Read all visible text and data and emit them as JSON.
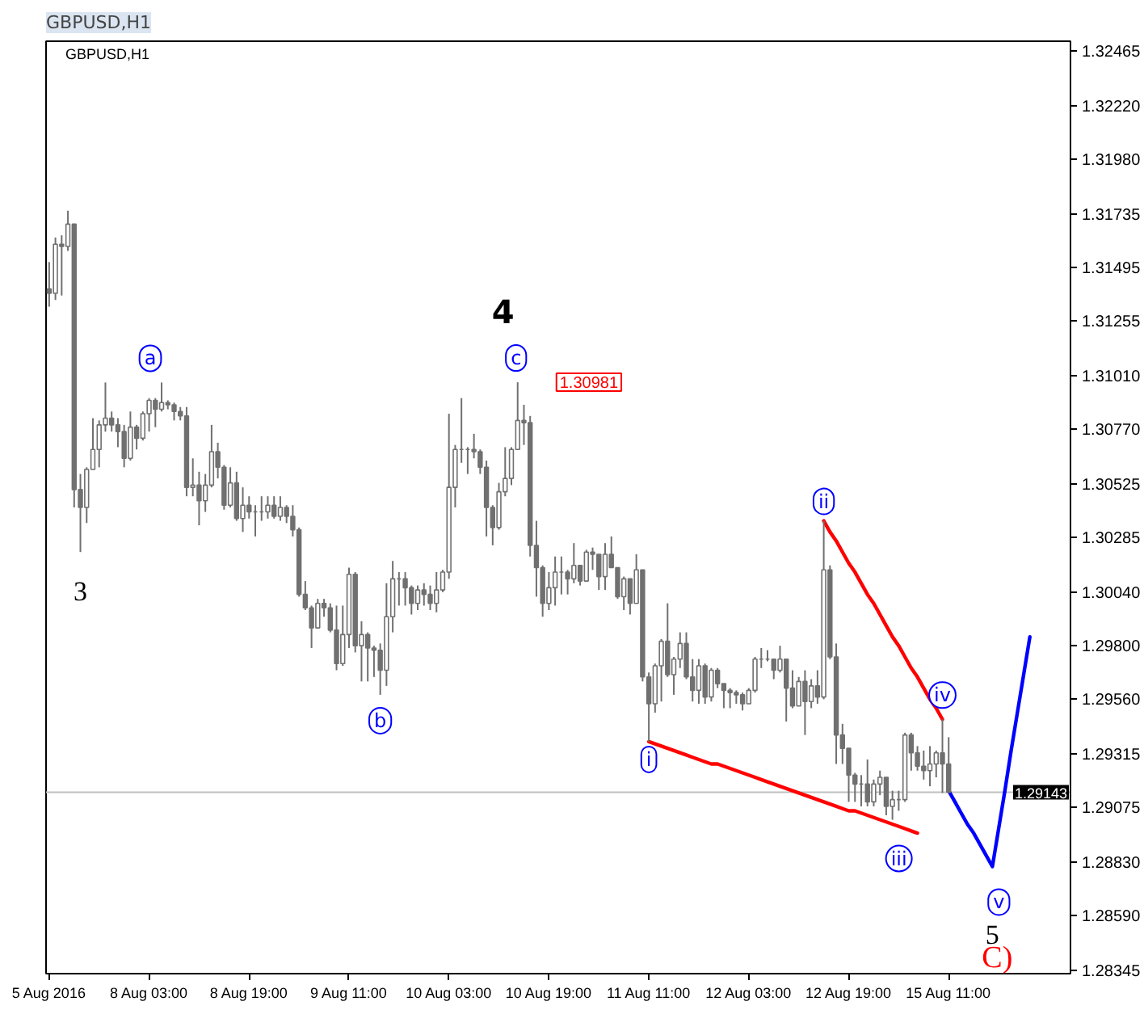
{
  "chart_data": {
    "type": "candlestick",
    "title": "GBPUSD,H1",
    "subtitle": "GBPUSD,H1",
    "color": "#707070",
    "categories": [
      "5 Aug 2016",
      null,
      null,
      null,
      null,
      null,
      null,
      null,
      null,
      null,
      null,
      null,
      null,
      null,
      null,
      null,
      "8 Aug 03:00",
      null,
      null,
      null,
      null,
      null,
      null,
      null,
      null,
      null,
      null,
      null,
      null,
      null,
      null,
      null,
      "8 Aug 19:00",
      null,
      null,
      null,
      null,
      null,
      null,
      null,
      null,
      null,
      null,
      null,
      null,
      null,
      null,
      null,
      "9 Aug 11:00",
      null,
      null,
      null,
      null,
      null,
      null,
      null,
      null,
      null,
      null,
      null,
      null,
      null,
      null,
      null,
      "10 Aug 03:00",
      null,
      null,
      null,
      null,
      null,
      null,
      null,
      null,
      null,
      null,
      null,
      null,
      null,
      null,
      null,
      "10 Aug 19:00",
      null,
      null,
      null,
      null,
      null,
      null,
      null,
      null,
      null,
      null,
      null,
      null,
      null,
      null,
      null,
      "11 Aug 11:00",
      null,
      null,
      null,
      null,
      null,
      null,
      null,
      null,
      null,
      null,
      null,
      null,
      null,
      null,
      null,
      "12 Aug 03:00",
      null,
      null,
      null,
      null,
      null,
      null,
      null,
      null,
      null,
      null,
      null,
      null,
      null,
      null,
      null,
      "12 Aug 19:00",
      null,
      null,
      null,
      null,
      null,
      null,
      null,
      null,
      null,
      null,
      null,
      null,
      null,
      null,
      null,
      "15 Aug 11:00",
      null,
      null,
      null,
      null,
      null,
      null,
      null,
      null,
      null,
      null,
      null,
      null,
      null,
      null,
      null,
      null,
      null,
      null,
      null
    ],
    "ohlc": [
      [
        1.314,
        1.3152,
        1.3132,
        1.3138
      ],
      [
        1.3138,
        1.3163,
        1.3135,
        1.316
      ],
      [
        1.316,
        1.3164,
        1.3137,
        1.3159
      ],
      [
        1.3159,
        1.3175,
        1.3157,
        1.3169
      ],
      [
        1.3169,
        1.3169,
        1.3042,
        1.305
      ],
      [
        1.305,
        1.3057,
        1.3022,
        1.3042
      ],
      [
        1.3042,
        1.306,
        1.3035,
        1.3059
      ],
      [
        1.3059,
        1.3082,
        1.3059,
        1.3068
      ],
      [
        1.3068,
        1.3081,
        1.306,
        1.3079
      ],
      [
        1.3079,
        1.3098,
        1.3076,
        1.3082
      ],
      [
        1.3082,
        1.3085,
        1.3076,
        1.3079
      ],
      [
        1.3079,
        1.3082,
        1.3069,
        1.3076
      ],
      [
        1.3076,
        1.3079,
        1.306,
        1.3064
      ],
      [
        1.3064,
        1.3085,
        1.3063,
        1.3078
      ],
      [
        1.3078,
        1.3079,
        1.3068,
        1.3073
      ],
      [
        1.3073,
        1.3085,
        1.3072,
        1.3084
      ],
      [
        1.3084,
        1.3091,
        1.3076,
        1.309
      ],
      [
        1.309,
        1.3091,
        1.3078,
        1.3086
      ],
      [
        1.3086,
        1.3098,
        1.3085,
        1.3089
      ],
      [
        1.3089,
        1.309,
        1.3086,
        1.3088
      ],
      [
        1.3088,
        1.3089,
        1.3081,
        1.3085
      ],
      [
        1.3085,
        1.3087,
        1.3081,
        1.3083
      ],
      [
        1.3083,
        1.3087,
        1.3047,
        1.3051
      ],
      [
        1.3051,
        1.3064,
        1.3047,
        1.3052
      ],
      [
        1.3052,
        1.3058,
        1.3034,
        1.3045
      ],
      [
        1.3045,
        1.3057,
        1.304,
        1.3052
      ],
      [
        1.3052,
        1.3079,
        1.3051,
        1.3067
      ],
      [
        1.3067,
        1.3071,
        1.3055,
        1.306
      ],
      [
        1.306,
        1.3061,
        1.3041,
        1.3043
      ],
      [
        1.3043,
        1.306,
        1.3042,
        1.3053
      ],
      [
        1.3053,
        1.3058,
        1.3036,
        1.3037
      ],
      [
        1.3037,
        1.3051,
        1.3031,
        1.3043
      ],
      [
        1.3043,
        1.3047,
        1.3037,
        1.304
      ],
      [
        1.304,
        1.3043,
        1.3029,
        1.304
      ],
      [
        1.304,
        1.3047,
        1.3036,
        1.304
      ],
      [
        1.304,
        1.3047,
        1.3037,
        1.3043
      ],
      [
        1.3043,
        1.3047,
        1.3037,
        1.3038
      ],
      [
        1.3038,
        1.3047,
        1.3036,
        1.3042
      ],
      [
        1.3042,
        1.3043,
        1.3035,
        1.3038
      ],
      [
        1.3038,
        1.3043,
        1.3029,
        1.3032
      ],
      [
        1.3032,
        1.3033,
        1.3002,
        1.3003
      ],
      [
        1.3003,
        1.3009,
        1.2996,
        1.2997
      ],
      [
        1.2997,
        1.2998,
        1.2979,
        1.2988
      ],
      [
        1.2988,
        1.3001,
        1.2988,
        1.2999
      ],
      [
        1.2999,
        1.3001,
        1.2993,
        1.2997
      ],
      [
        1.2997,
        1.2999,
        1.2986,
        1.2987
      ],
      [
        1.2987,
        1.2998,
        1.2969,
        1.2972
      ],
      [
        1.2972,
        1.2998,
        1.2971,
        1.2985
      ],
      [
        1.2985,
        1.3015,
        1.2979,
        1.3012
      ],
      [
        1.3012,
        1.3013,
        1.2977,
        1.298
      ],
      [
        1.298,
        1.2991,
        1.2964,
        1.2985
      ],
      [
        1.2985,
        1.2986,
        1.2964,
        1.2979
      ],
      [
        1.2979,
        1.298,
        1.2966,
        1.2978
      ],
      [
        1.2978,
        1.2981,
        1.2958,
        1.2969
      ],
      [
        1.2969,
        1.3008,
        1.2962,
        1.2993
      ],
      [
        1.2993,
        1.3018,
        1.2986,
        1.301
      ],
      [
        1.301,
        1.3013,
        1.2998,
        1.301
      ],
      [
        1.301,
        1.3013,
        1.2998,
        1.3006
      ],
      [
        1.3006,
        1.3007,
        1.2994,
        1.2999
      ],
      [
        1.2999,
        1.3007,
        1.2996,
        1.3005
      ],
      [
        1.3005,
        1.3008,
        1.2998,
        1.3003
      ],
      [
        1.3003,
        1.3007,
        1.2996,
        1.2999
      ],
      [
        1.2999,
        1.3013,
        1.2995,
        1.3005
      ],
      [
        1.3005,
        1.3014,
        1.3004,
        1.3013
      ],
      [
        1.3013,
        1.3084,
        1.301,
        1.3051
      ],
      [
        1.3051,
        1.307,
        1.3042,
        1.3068
      ],
      [
        1.3068,
        1.3091,
        1.3062,
        1.3068
      ],
      [
        1.3068,
        1.3069,
        1.3057,
        1.3068
      ],
      [
        1.3068,
        1.3075,
        1.3064,
        1.3067
      ],
      [
        1.3067,
        1.3068,
        1.3057,
        1.306
      ],
      [
        1.306,
        1.3063,
        1.3029,
        1.3042
      ],
      [
        1.3042,
        1.3043,
        1.3025,
        1.3033
      ],
      [
        1.3033,
        1.3053,
        1.3032,
        1.3049
      ],
      [
        1.3049,
        1.3069,
        1.3047,
        1.3055
      ],
      [
        1.3055,
        1.3069,
        1.3052,
        1.3068
      ],
      [
        1.3068,
        1.30981,
        1.3068,
        1.3081
      ],
      [
        1.3081,
        1.3088,
        1.307,
        1.308
      ],
      [
        1.308,
        1.3083,
        1.302,
        1.3025
      ],
      [
        1.3025,
        1.3036,
        1.3002,
        1.3015
      ],
      [
        1.3015,
        1.3016,
        1.2993,
        1.2999
      ],
      [
        1.2999,
        1.3013,
        1.2996,
        1.3006
      ],
      [
        1.3006,
        1.302,
        1.2998,
        1.3013
      ],
      [
        1.3013,
        1.302,
        1.3003,
        1.3013
      ],
      [
        1.3013,
        1.3014,
        1.3003,
        1.301
      ],
      [
        1.301,
        1.3026,
        1.3008,
        1.3016
      ],
      [
        1.3016,
        1.3016,
        1.3007,
        1.3009
      ],
      [
        1.3009,
        1.3023,
        1.3009,
        1.3022
      ],
      [
        1.3022,
        1.3024,
        1.3014,
        1.3021
      ],
      [
        1.3021,
        1.3021,
        1.3005,
        1.3011
      ],
      [
        1.3011,
        1.3026,
        1.3005,
        1.3021
      ],
      [
        1.3021,
        1.3029,
        1.3015,
        1.3015
      ],
      [
        1.3015,
        1.3015,
        1.3001,
        1.3002
      ],
      [
        1.3002,
        1.3011,
        1.2996,
        1.301
      ],
      [
        1.301,
        1.301,
        1.2994,
        1.2999
      ],
      [
        1.2999,
        1.3021,
        1.2999,
        1.3014
      ],
      [
        1.3014,
        1.3014,
        1.2964,
        1.2966
      ],
      [
        1.2966,
        1.2968,
        1.2937,
        1.2954
      ],
      [
        1.2954,
        1.2972,
        1.295,
        1.2971
      ],
      [
        1.2971,
        1.2983,
        1.2955,
        1.2982
      ],
      [
        1.2982,
        1.2999,
        1.2966,
        1.2967
      ],
      [
        1.2967,
        1.2975,
        1.2958,
        1.2974
      ],
      [
        1.2974,
        1.2986,
        1.297,
        1.2981
      ],
      [
        1.2981,
        1.2986,
        1.2965,
        1.2966
      ],
      [
        1.2966,
        1.2974,
        1.2955,
        1.296
      ],
      [
        1.296,
        1.2974,
        1.2954,
        1.2971
      ],
      [
        1.2971,
        1.2972,
        1.2954,
        1.2957
      ],
      [
        1.2957,
        1.297,
        1.2955,
        1.2969
      ],
      [
        1.2969,
        1.297,
        1.2961,
        1.2963
      ],
      [
        1.2963,
        1.2963,
        1.2952,
        1.296
      ],
      [
        1.296,
        1.2961,
        1.2952,
        1.2959
      ],
      [
        1.2959,
        1.296,
        1.2954,
        1.2958
      ],
      [
        1.2958,
        1.2959,
        1.2951,
        1.2954
      ],
      [
        1.2954,
        1.2961,
        1.2954,
        1.296
      ],
      [
        1.296,
        1.2975,
        1.2959,
        1.2974
      ],
      [
        1.2974,
        1.2979,
        1.297,
        1.2974
      ],
      [
        1.2974,
        1.2978,
        1.2973,
        1.2974
      ],
      [
        1.2974,
        1.2974,
        1.2965,
        1.2969
      ],
      [
        1.2969,
        1.298,
        1.2968,
        1.2974
      ],
      [
        1.2974,
        1.2974,
        1.2946,
        1.2961
      ],
      [
        1.2961,
        1.2969,
        1.2952,
        1.2953
      ],
      [
        1.2953,
        1.2966,
        1.2953,
        1.2964
      ],
      [
        1.2964,
        1.2969,
        1.294,
        1.2955
      ],
      [
        1.2955,
        1.2965,
        1.2952,
        1.2962
      ],
      [
        1.2962,
        1.2969,
        1.2954,
        1.2957
      ],
      [
        1.2957,
        1.3036,
        1.2956,
        1.3014
      ],
      [
        1.3014,
        1.3016,
        1.2974,
        1.2975
      ],
      [
        1.2975,
        1.2981,
        1.2927,
        1.294
      ],
      [
        1.294,
        1.2945,
        1.2927,
        1.2934
      ],
      [
        1.2934,
        1.2934,
        1.291,
        1.2922
      ],
      [
        1.2922,
        1.2923,
        1.291,
        1.2918
      ],
      [
        1.2918,
        1.2922,
        1.2908,
        1.2918
      ],
      [
        1.2918,
        1.2929,
        1.2908,
        1.291
      ],
      [
        1.291,
        1.292,
        1.2908,
        1.2918
      ],
      [
        1.2918,
        1.2924,
        1.2913,
        1.2921
      ],
      [
        1.2921,
        1.2921,
        1.2904,
        1.2908
      ],
      [
        1.2908,
        1.2915,
        1.2902,
        1.2911
      ],
      [
        1.2911,
        1.2915,
        1.2906,
        1.2911
      ],
      [
        1.2911,
        1.2941,
        1.291,
        1.294
      ],
      [
        1.294,
        1.2941,
        1.2924,
        1.2932
      ],
      [
        1.2932,
        1.2935,
        1.2924,
        1.2926
      ],
      [
        1.2926,
        1.2933,
        1.292,
        1.2924
      ],
      [
        1.2924,
        1.2935,
        1.2917,
        1.2927
      ],
      [
        1.2927,
        1.2933,
        1.2921,
        1.2932
      ],
      [
        1.2932,
        1.2947,
        1.2914,
        1.2927
      ],
      [
        1.2927,
        1.2939,
        1.2914,
        1.29143
      ],
      null,
      null,
      null,
      null,
      null,
      null,
      null,
      null,
      null,
      null,
      null,
      null,
      null,
      null,
      null,
      null,
      null,
      null,
      null
    ],
    "series": [
      {
        "type": "line",
        "color": "#ff0000",
        "values": [
          null,
          null,
          null,
          null,
          null,
          null,
          null,
          null,
          null,
          null,
          null,
          null,
          null,
          null,
          null,
          null,
          null,
          null,
          null,
          null,
          null,
          null,
          null,
          null,
          null,
          null,
          null,
          null,
          null,
          null,
          null,
          null,
          null,
          null,
          null,
          null,
          null,
          null,
          null,
          null,
          null,
          null,
          null,
          null,
          null,
          null,
          null,
          null,
          null,
          null,
          null,
          null,
          null,
          null,
          null,
          null,
          null,
          null,
          null,
          null,
          null,
          null,
          null,
          null,
          null,
          null,
          null,
          null,
          null,
          null,
          null,
          null,
          null,
          null,
          null,
          null,
          null,
          null,
          null,
          null,
          null,
          null,
          null,
          null,
          null,
          null,
          null,
          null,
          null,
          null,
          null,
          null,
          null,
          null,
          null,
          null,
          1.2937,
          1.2936,
          1.2935,
          1.2934,
          1.2933,
          1.2932,
          1.2931,
          1.293,
          1.2929,
          1.2928,
          1.2927,
          1.2927,
          1.2926,
          1.2925,
          1.2924,
          1.2923,
          1.2922,
          1.2921,
          1.292,
          1.2919,
          1.2918,
          1.2917,
          1.2916,
          1.2915,
          1.2914,
          1.2913,
          1.2912,
          1.2911,
          1.291,
          1.2909,
          1.2908,
          1.2907,
          1.2906,
          1.2906,
          1.2905,
          1.2904,
          1.2903,
          1.2902,
          1.2901,
          1.29,
          1.2899,
          1.2898,
          1.2897,
          1.2896,
          null,
          null,
          null,
          null,
          null,
          null,
          null,
          null,
          null,
          null,
          null,
          null,
          null,
          null,
          null,
          null,
          null,
          null,
          null,
          null,
          null,
          null,
          null,
          null
        ]
      },
      {
        "type": "line",
        "color": "#ff0000",
        "values": [
          null,
          null,
          null,
          null,
          null,
          null,
          null,
          null,
          null,
          null,
          null,
          null,
          null,
          null,
          null,
          null,
          null,
          null,
          null,
          null,
          null,
          null,
          null,
          null,
          null,
          null,
          null,
          null,
          null,
          null,
          null,
          null,
          null,
          null,
          null,
          null,
          null,
          null,
          null,
          null,
          null,
          null,
          null,
          null,
          null,
          null,
          null,
          null,
          null,
          null,
          null,
          null,
          null,
          null,
          null,
          null,
          null,
          null,
          null,
          null,
          null,
          null,
          null,
          null,
          null,
          null,
          null,
          null,
          null,
          null,
          null,
          null,
          null,
          null,
          null,
          null,
          null,
          null,
          null,
          null,
          null,
          null,
          null,
          null,
          null,
          null,
          null,
          null,
          null,
          null,
          null,
          null,
          null,
          null,
          null,
          null,
          null,
          null,
          null,
          null,
          null,
          null,
          null,
          null,
          null,
          null,
          null,
          null,
          null,
          null,
          null,
          null,
          null,
          null,
          null,
          null,
          null,
          null,
          null,
          null,
          null,
          null,
          null,
          null,
          1.3036,
          1.3031,
          1.3027,
          1.3022,
          1.3017,
          1.3013,
          1.3008,
          1.3003,
          1.2999,
          1.2994,
          1.2989,
          1.2984,
          1.298,
          1.2975,
          1.297,
          1.2966,
          1.2961,
          1.2956,
          1.2952,
          1.2947,
          null,
          null,
          null,
          null,
          null,
          null,
          null,
          null,
          null,
          null,
          null,
          null,
          null,
          null,
          null,
          null,
          null,
          null,
          null,
          null
        ]
      },
      {
        "type": "line",
        "color": "#0000ff",
        "values": [
          null,
          null,
          null,
          null,
          null,
          null,
          null,
          null,
          null,
          null,
          null,
          null,
          null,
          null,
          null,
          null,
          null,
          null,
          null,
          null,
          null,
          null,
          null,
          null,
          null,
          null,
          null,
          null,
          null,
          null,
          null,
          null,
          null,
          null,
          null,
          null,
          null,
          null,
          null,
          null,
          null,
          null,
          null,
          null,
          null,
          null,
          null,
          null,
          null,
          null,
          null,
          null,
          null,
          null,
          null,
          null,
          null,
          null,
          null,
          null,
          null,
          null,
          null,
          null,
          null,
          null,
          null,
          null,
          null,
          null,
          null,
          null,
          null,
          null,
          null,
          null,
          null,
          null,
          null,
          null,
          null,
          null,
          null,
          null,
          null,
          null,
          null,
          null,
          null,
          null,
          null,
          null,
          null,
          null,
          null,
          null,
          null,
          null,
          null,
          null,
          null,
          null,
          null,
          null,
          null,
          null,
          null,
          null,
          null,
          null,
          null,
          null,
          null,
          null,
          null,
          null,
          null,
          null,
          null,
          null,
          null,
          null,
          null,
          null,
          null,
          null,
          null,
          null,
          null,
          null,
          null,
          null,
          null,
          null,
          null,
          null,
          null,
          null,
          null,
          null,
          null,
          null,
          null,
          null,
          1.2915,
          1.291,
          1.2905,
          1.29,
          1.2896,
          1.2891,
          1.2886,
          1.2881,
          1.2898,
          1.2915,
          1.2933,
          1.295,
          1.2967,
          1.2984,
          null,
          null,
          null,
          null,
          null,
          null
        ]
      }
    ],
    "ylim": [
      1.2833,
      1.3251
    ],
    "yticks": [
      1.32465,
      {
        "value": 1.3222,
        "label": "1.32220"
      },
      {
        "value": 1.3198,
        "label": "1.31980"
      },
      1.31735,
      1.31495,
      1.31255,
      {
        "value": 1.3101,
        "label": "1.31010"
      },
      {
        "value": 1.3077,
        "label": "1.30770"
      },
      1.30525,
      1.30285,
      {
        "value": 1.3004,
        "label": "1.30040"
      },
      {
        "value": 1.298,
        "label": "1.29800"
      },
      {
        "value": 1.2956,
        "label": "1.29560"
      },
      1.29315,
      1.29075,
      {
        "value": 1.2883,
        "label": "1.28830"
      },
      {
        "value": 1.2859,
        "label": "1.28590"
      },
      1.28345
    ],
    "ref_lines": [
      {
        "axis": "y",
        "value": 1.29143,
        "label": "1.29143",
        "color": "#c0c0c0"
      }
    ],
    "annotations": [
      "3",
      "a",
      "b",
      "4",
      "c",
      "1.30981",
      "i",
      "ii",
      "iii",
      "iv",
      "v",
      "5",
      "C)"
    ]
  }
}
